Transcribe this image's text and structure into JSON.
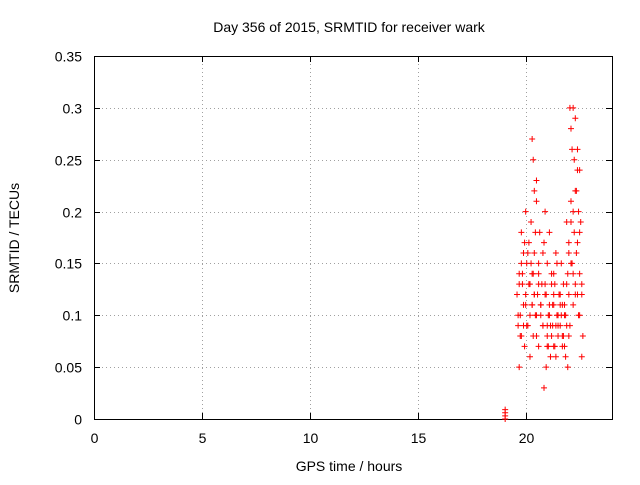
{
  "chart_data": {
    "type": "scatter",
    "title": "Day 356 of 2015, SRMTID for receiver wark",
    "xlabel": "GPS time / hours",
    "ylabel": "SRMTID / TECUs",
    "xlim": [
      0,
      24
    ],
    "ylim": [
      0,
      0.35
    ],
    "x_ticks": [
      0,
      5,
      10,
      15,
      20
    ],
    "x_tick_labels": [
      "0",
      "5",
      "10",
      "15",
      "20"
    ],
    "y_ticks": [
      0,
      0.05,
      0.1,
      0.15,
      0.2,
      0.25,
      0.3,
      0.35
    ],
    "y_tick_labels": [
      "0",
      "0.05",
      "0.1",
      "0.15",
      "0.2",
      "0.25",
      "0.3",
      "0.35"
    ],
    "grid": true,
    "marker": "+",
    "series": [
      {
        "name": "SRMTID",
        "color": "#ff0000",
        "x": [
          19.05,
          19.05,
          19.05,
          19.05,
          19.6,
          19.65,
          19.7,
          19.7,
          19.75,
          19.8,
          19.8,
          19.85,
          19.9,
          19.9,
          19.95,
          20.0,
          20.0,
          20.05,
          20.1,
          20.15,
          20.2,
          20.2,
          20.25,
          20.3,
          20.35,
          20.35,
          20.4,
          20.45,
          20.5,
          20.55,
          20.6,
          20.6,
          20.65,
          20.7,
          20.75,
          20.8,
          20.85,
          20.9,
          20.95,
          21.0,
          21.0,
          21.05,
          21.1,
          21.15,
          21.2,
          21.25,
          21.3,
          21.3,
          21.35,
          21.4,
          21.45,
          21.5,
          21.55,
          21.6,
          21.65,
          21.7,
          21.75,
          21.8,
          21.85,
          21.9,
          21.95,
          22.0,
          22.0,
          22.05,
          22.1,
          22.15,
          22.2,
          22.25,
          22.3,
          22.35,
          22.4,
          22.45,
          22.5,
          22.55,
          22.6,
          22.65,
          19.65,
          19.75,
          19.85,
          19.95,
          20.05,
          20.15,
          20.25,
          20.3,
          20.4,
          20.5,
          20.6,
          20.7,
          20.8,
          20.9,
          21.0,
          21.1,
          21.2,
          21.3,
          21.4,
          21.5,
          21.6,
          21.7,
          21.8,
          21.9,
          22.0,
          22.1,
          22.2,
          22.3,
          22.4,
          22.5,
          22.6,
          19.7,
          19.8,
          19.9,
          20.0,
          20.1,
          20.2,
          20.3,
          20.4,
          20.5,
          20.6,
          20.7,
          20.8,
          20.9,
          21.0,
          21.1,
          21.2,
          21.3,
          21.4,
          21.5,
          21.6,
          21.7,
          21.8,
          21.9,
          22.0,
          22.1,
          22.2,
          22.3,
          22.4,
          22.5,
          22.6,
          20.3,
          20.35,
          20.4,
          20.45,
          20.5,
          22.05,
          22.1,
          22.15,
          22.2,
          22.25,
          22.3,
          22.35,
          22.4,
          22.45,
          22.5,
          20.85,
          20.95,
          21.05,
          21.15,
          21.25,
          21.35,
          21.45,
          21.55,
          21.65,
          21.75,
          21.85,
          21.95
        ],
        "y": [
          0.0,
          0.003,
          0.006,
          0.009,
          0.12,
          0.09,
          0.05,
          0.14,
          0.1,
          0.18,
          0.08,
          0.13,
          0.16,
          0.11,
          0.07,
          0.2,
          0.12,
          0.15,
          0.09,
          0.17,
          0.06,
          0.13,
          0.19,
          0.11,
          0.14,
          0.08,
          0.16,
          0.1,
          0.21,
          0.12,
          0.15,
          0.07,
          0.18,
          0.11,
          0.13,
          0.09,
          0.17,
          0.2,
          0.12,
          0.08,
          0.15,
          0.1,
          0.18,
          0.06,
          0.13,
          0.09,
          0.11,
          0.14,
          0.07,
          0.16,
          0.1,
          0.08,
          0.12,
          0.09,
          0.15,
          0.11,
          0.13,
          0.07,
          0.1,
          0.19,
          0.14,
          0.12,
          0.17,
          0.09,
          0.21,
          0.15,
          0.11,
          0.18,
          0.13,
          0.16,
          0.24,
          0.1,
          0.14,
          0.19,
          0.12,
          0.08,
          0.1,
          0.08,
          0.14,
          0.17,
          0.09,
          0.13,
          0.15,
          0.11,
          0.12,
          0.1,
          0.14,
          0.11,
          0.09,
          0.13,
          0.07,
          0.1,
          0.08,
          0.12,
          0.06,
          0.09,
          0.11,
          0.07,
          0.1,
          0.13,
          0.08,
          0.15,
          0.2,
          0.22,
          0.12,
          0.18,
          0.06,
          0.13,
          0.15,
          0.09,
          0.11,
          0.16,
          0.1,
          0.14,
          0.12,
          0.08,
          0.13,
          0.1,
          0.16,
          0.12,
          0.09,
          0.11,
          0.14,
          0.07,
          0.09,
          0.1,
          0.12,
          0.08,
          0.11,
          0.09,
          0.16,
          0.19,
          0.14,
          0.12,
          0.17,
          0.1,
          0.13,
          0.27,
          0.25,
          0.22,
          0.18,
          0.23,
          0.3,
          0.28,
          0.26,
          0.3,
          0.25,
          0.29,
          0.22,
          0.26,
          0.2,
          0.24,
          0.03,
          0.05,
          0.07,
          0.09,
          0.11,
          0.13,
          0.15,
          0.12,
          0.1,
          0.08,
          0.06,
          0.05
        ]
      }
    ]
  }
}
